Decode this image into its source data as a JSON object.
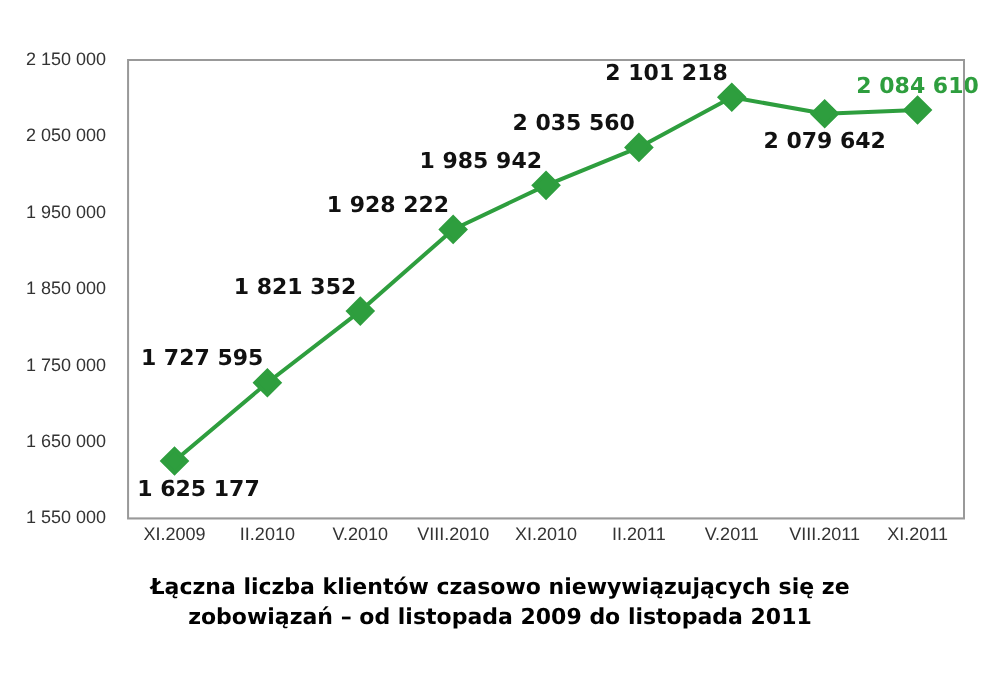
{
  "chart_data": {
    "type": "line",
    "title": "Łączna liczba klientów czasowo niewywiązujących się ze zobowiązań – od listopada 2009 do listopada 2011",
    "categories": [
      "XI.2009",
      "II.2010",
      "V.2010",
      "VIII.2010",
      "XI.2010",
      "II.2011",
      "V.2011",
      "VIII.2011",
      "XI.2011"
    ],
    "series": [
      {
        "color": "#2e9e3e",
        "values": [
          1625177,
          1727595,
          1821352,
          1928222,
          1985942,
          2035560,
          2101218,
          2079642,
          2084610
        ]
      }
    ],
    "ylim": [
      1550000,
      2150000
    ],
    "yticks": [
      1550000,
      1650000,
      1750000,
      1850000,
      1950000,
      2050000,
      2150000
    ],
    "grid": false,
    "legend": false,
    "marker": "diamond",
    "line_style": "solid",
    "data_labels": true
  }
}
